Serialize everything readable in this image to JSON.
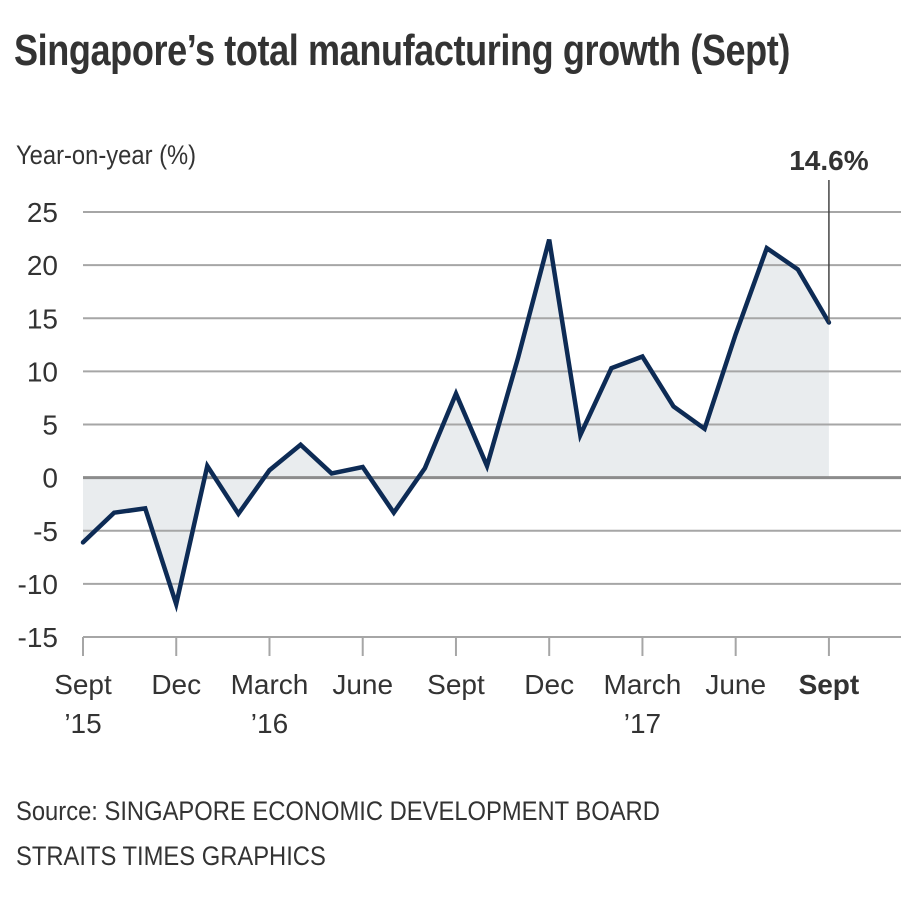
{
  "title": "Singapore’s total manufacturing growth (Sept)",
  "footer": {
    "source": "Source: SINGAPORE ECONOMIC DEVELOPMENT BOARD",
    "credit": "STRAITS TIMES GRAPHICS"
  },
  "colors": {
    "line": "#0d2b55",
    "fill": "#e9ecee",
    "grid": "#a6a6a6",
    "zero_line": "#8c8c8c",
    "text": "#333333"
  },
  "chart_data": {
    "type": "area",
    "title": "Singapore’s total manufacturing growth (Sept)",
    "ylabel": "Year-on-year (%)",
    "xlabel": "",
    "ylim": [
      -15,
      25
    ],
    "yticks": [
      25,
      20,
      15,
      10,
      5,
      0,
      -5,
      -10,
      -15
    ],
    "grid": true,
    "x": [
      "Sep 2015",
      "Oct 2015",
      "Nov 2015",
      "Dec 2015",
      "Jan 2016",
      "Feb 2016",
      "Mar 2016",
      "Apr 2016",
      "May 2016",
      "Jun 2016",
      "Jul 2016",
      "Aug 2016",
      "Sep 2016",
      "Oct 2016",
      "Nov 2016",
      "Dec 2016",
      "Jan 2017",
      "Feb 2017",
      "Mar 2017",
      "Apr 2017",
      "May 2017",
      "Jun 2017",
      "Jul 2017",
      "Aug 2017",
      "Sep 2017"
    ],
    "values": [
      -6.1,
      -3.3,
      -2.9,
      -11.9,
      1.1,
      -3.4,
      0.7,
      3.1,
      0.4,
      1.0,
      -3.3,
      0.9,
      7.9,
      1.1,
      11.3,
      22.4,
      4.0,
      10.3,
      11.4,
      6.7,
      4.6,
      13.5,
      21.6,
      19.6,
      14.6
    ],
    "xticks": [
      {
        "index": 0,
        "label": "Sept",
        "sublabel": "’15",
        "bold": false
      },
      {
        "index": 3,
        "label": "Dec",
        "sublabel": "",
        "bold": false
      },
      {
        "index": 6,
        "label": "March",
        "sublabel": "’16",
        "bold": false
      },
      {
        "index": 9,
        "label": "June",
        "sublabel": "",
        "bold": false
      },
      {
        "index": 12,
        "label": "Sept",
        "sublabel": "",
        "bold": false
      },
      {
        "index": 15,
        "label": "Dec",
        "sublabel": "",
        "bold": false
      },
      {
        "index": 18,
        "label": "March",
        "sublabel": "’17",
        "bold": false
      },
      {
        "index": 21,
        "label": "June",
        "sublabel": "",
        "bold": false
      },
      {
        "index": 24,
        "label": "Sept",
        "sublabel": "",
        "bold": true
      }
    ],
    "annotation": {
      "index": 24,
      "text": "14.6%"
    }
  }
}
